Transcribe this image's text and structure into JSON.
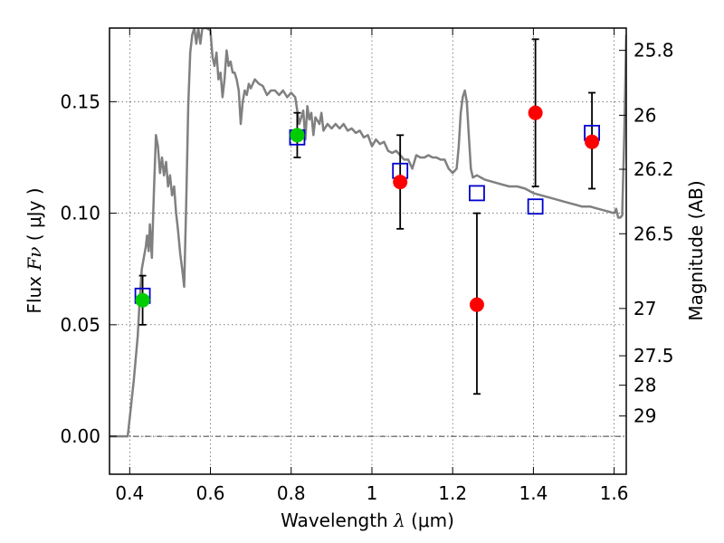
{
  "chart_data": {
    "type": "scatter",
    "xlabel": "Wavelength",
    "xlabel_symbol": "λ",
    "xlabel_unit": "(μm)",
    "ylabel": "Flux",
    "ylabel_symbol": "Fν",
    "ylabel_unit": "( μJy )",
    "y2label": "Magnitude (AB)",
    "xlim": [
      0.35,
      1.63
    ],
    "ylim": [
      -0.017,
      0.183
    ],
    "grid": true,
    "x_ticks": [
      0.4,
      0.6,
      0.8,
      1.0,
      1.2,
      1.4,
      1.6
    ],
    "x_tick_labels": [
      "0.4",
      "0.6",
      "0.8",
      "1",
      "1.2",
      "1.4",
      "1.6"
    ],
    "y_ticks": [
      0.0,
      0.05,
      0.1,
      0.15
    ],
    "y_tick_labels": [
      "0.00",
      "0.05",
      "0.10",
      "0.15"
    ],
    "y2_ticks": [
      {
        "label": "25.8",
        "flux": 0.173
      },
      {
        "label": "26",
        "flux": 0.1439
      },
      {
        "label": "26.2",
        "flux": 0.1197
      },
      {
        "label": "26.5",
        "flux": 0.0908
      },
      {
        "label": "27",
        "flux": 0.0573
      },
      {
        "label": "27.5",
        "flux": 0.0361
      },
      {
        "label": "28",
        "flux": 0.0229
      },
      {
        "label": "29",
        "flux": 0.0091
      }
    ],
    "series": [
      {
        "kind": "line",
        "color": "#808080",
        "points": [
          [
            0.35,
            0.0
          ],
          [
            0.395,
            0.0
          ],
          [
            0.4,
            0.008
          ],
          [
            0.41,
            0.025
          ],
          [
            0.42,
            0.045
          ],
          [
            0.425,
            0.062
          ],
          [
            0.43,
            0.075
          ],
          [
            0.435,
            0.08
          ],
          [
            0.44,
            0.085
          ],
          [
            0.443,
            0.09
          ],
          [
            0.447,
            0.083
          ],
          [
            0.45,
            0.095
          ],
          [
            0.455,
            0.08
          ],
          [
            0.46,
            0.11
          ],
          [
            0.465,
            0.135
          ],
          [
            0.47,
            0.13
          ],
          [
            0.475,
            0.118
          ],
          [
            0.48,
            0.125
          ],
          [
            0.485,
            0.117
          ],
          [
            0.49,
            0.123
          ],
          [
            0.495,
            0.112
          ],
          [
            0.5,
            0.117
          ],
          [
            0.505,
            0.108
          ],
          [
            0.51,
            0.112
          ],
          [
            0.515,
            0.1
          ],
          [
            0.52,
            0.092
          ],
          [
            0.525,
            0.082
          ],
          [
            0.53,
            0.075
          ],
          [
            0.535,
            0.067
          ],
          [
            0.54,
            0.105
          ],
          [
            0.545,
            0.148
          ],
          [
            0.55,
            0.172
          ],
          [
            0.555,
            0.18
          ],
          [
            0.56,
            0.183
          ],
          [
            0.565,
            0.176
          ],
          [
            0.57,
            0.183
          ],
          [
            0.575,
            0.176
          ],
          [
            0.58,
            0.183
          ],
          [
            0.59,
            0.183
          ],
          [
            0.6,
            0.182
          ],
          [
            0.605,
            0.17
          ],
          [
            0.61,
            0.166
          ],
          [
            0.615,
            0.172
          ],
          [
            0.62,
            0.16
          ],
          [
            0.625,
            0.163
          ],
          [
            0.63,
            0.152
          ],
          [
            0.635,
            0.16
          ],
          [
            0.64,
            0.173
          ],
          [
            0.645,
            0.166
          ],
          [
            0.65,
            0.168
          ],
          [
            0.655,
            0.163
          ],
          [
            0.66,
            0.163
          ],
          [
            0.665,
            0.16
          ],
          [
            0.67,
            0.155
          ],
          [
            0.675,
            0.14
          ],
          [
            0.68,
            0.15
          ],
          [
            0.685,
            0.155
          ],
          [
            0.69,
            0.153
          ],
          [
            0.695,
            0.158
          ],
          [
            0.7,
            0.156
          ],
          [
            0.71,
            0.16
          ],
          [
            0.72,
            0.158
          ],
          [
            0.73,
            0.157
          ],
          [
            0.74,
            0.153
          ],
          [
            0.75,
            0.155
          ],
          [
            0.76,
            0.155
          ],
          [
            0.77,
            0.153
          ],
          [
            0.78,
            0.155
          ],
          [
            0.79,
            0.152
          ],
          [
            0.8,
            0.154
          ],
          [
            0.81,
            0.152
          ],
          [
            0.82,
            0.14
          ],
          [
            0.83,
            0.146
          ],
          [
            0.835,
            0.133
          ],
          [
            0.84,
            0.148
          ],
          [
            0.845,
            0.142
          ],
          [
            0.85,
            0.145
          ],
          [
            0.855,
            0.135
          ],
          [
            0.86,
            0.143
          ],
          [
            0.87,
            0.14
          ],
          [
            0.875,
            0.145
          ],
          [
            0.88,
            0.137
          ],
          [
            0.89,
            0.14
          ],
          [
            0.9,
            0.138
          ],
          [
            0.91,
            0.14
          ],
          [
            0.92,
            0.138
          ],
          [
            0.93,
            0.14
          ],
          [
            0.94,
            0.137
          ],
          [
            0.95,
            0.138
          ],
          [
            0.96,
            0.136
          ],
          [
            0.97,
            0.137
          ],
          [
            0.98,
            0.134
          ],
          [
            0.99,
            0.135
          ],
          [
            1.0,
            0.13
          ],
          [
            1.01,
            0.133
          ],
          [
            1.02,
            0.131
          ],
          [
            1.03,
            0.132
          ],
          [
            1.04,
            0.128
          ],
          [
            1.05,
            0.127
          ],
          [
            1.06,
            0.128
          ],
          [
            1.07,
            0.126
          ],
          [
            1.08,
            0.124
          ],
          [
            1.09,
            0.124
          ],
          [
            1.1,
            0.12
          ],
          [
            1.11,
            0.126
          ],
          [
            1.12,
            0.125
          ],
          [
            1.13,
            0.125
          ],
          [
            1.14,
            0.126
          ],
          [
            1.15,
            0.125
          ],
          [
            1.16,
            0.125
          ],
          [
            1.17,
            0.124
          ],
          [
            1.18,
            0.124
          ],
          [
            1.19,
            0.12
          ],
          [
            1.2,
            0.118
          ],
          [
            1.21,
            0.12
          ],
          [
            1.215,
            0.13
          ],
          [
            1.22,
            0.145
          ],
          [
            1.225,
            0.152
          ],
          [
            1.23,
            0.155
          ],
          [
            1.235,
            0.15
          ],
          [
            1.24,
            0.135
          ],
          [
            1.245,
            0.12
          ],
          [
            1.25,
            0.116
          ],
          [
            1.26,
            0.117
          ],
          [
            1.28,
            0.115
          ],
          [
            1.3,
            0.114
          ],
          [
            1.32,
            0.113
          ],
          [
            1.34,
            0.112
          ],
          [
            1.36,
            0.112
          ],
          [
            1.38,
            0.111
          ],
          [
            1.4,
            0.109
          ],
          [
            1.42,
            0.108
          ],
          [
            1.44,
            0.107
          ],
          [
            1.46,
            0.106
          ],
          [
            1.48,
            0.105
          ],
          [
            1.5,
            0.104
          ],
          [
            1.52,
            0.103
          ],
          [
            1.54,
            0.103
          ],
          [
            1.56,
            0.102
          ],
          [
            1.58,
            0.101
          ],
          [
            1.6,
            0.1
          ],
          [
            1.605,
            0.102
          ],
          [
            1.61,
            0.098
          ],
          [
            1.615,
            0.098
          ],
          [
            1.62,
            0.099
          ],
          [
            1.625,
            0.135
          ],
          [
            1.63,
            0.18
          ]
        ]
      },
      {
        "kind": "square-marker",
        "color": "#0000cc",
        "x": [
          0.432,
          0.815,
          1.07,
          1.26,
          1.405,
          1.545
        ],
        "y": [
          0.063,
          0.134,
          0.119,
          0.109,
          0.103,
          0.136
        ]
      },
      {
        "kind": "circle-marker",
        "color": "#00cc00",
        "x": [
          0.432,
          0.815
        ],
        "y": [
          0.061,
          0.135
        ],
        "yerr_low": [
          0.05,
          0.125
        ],
        "yerr_high": [
          0.072,
          0.145
        ]
      },
      {
        "kind": "circle-marker",
        "color": "#ff0000",
        "x": [
          1.07,
          1.26,
          1.405,
          1.545
        ],
        "y": [
          0.114,
          0.059,
          0.145,
          0.132
        ],
        "yerr_low": [
          0.093,
          0.019,
          0.112,
          0.111
        ],
        "yerr_high": [
          0.135,
          0.1,
          0.178,
          0.154
        ]
      }
    ]
  }
}
